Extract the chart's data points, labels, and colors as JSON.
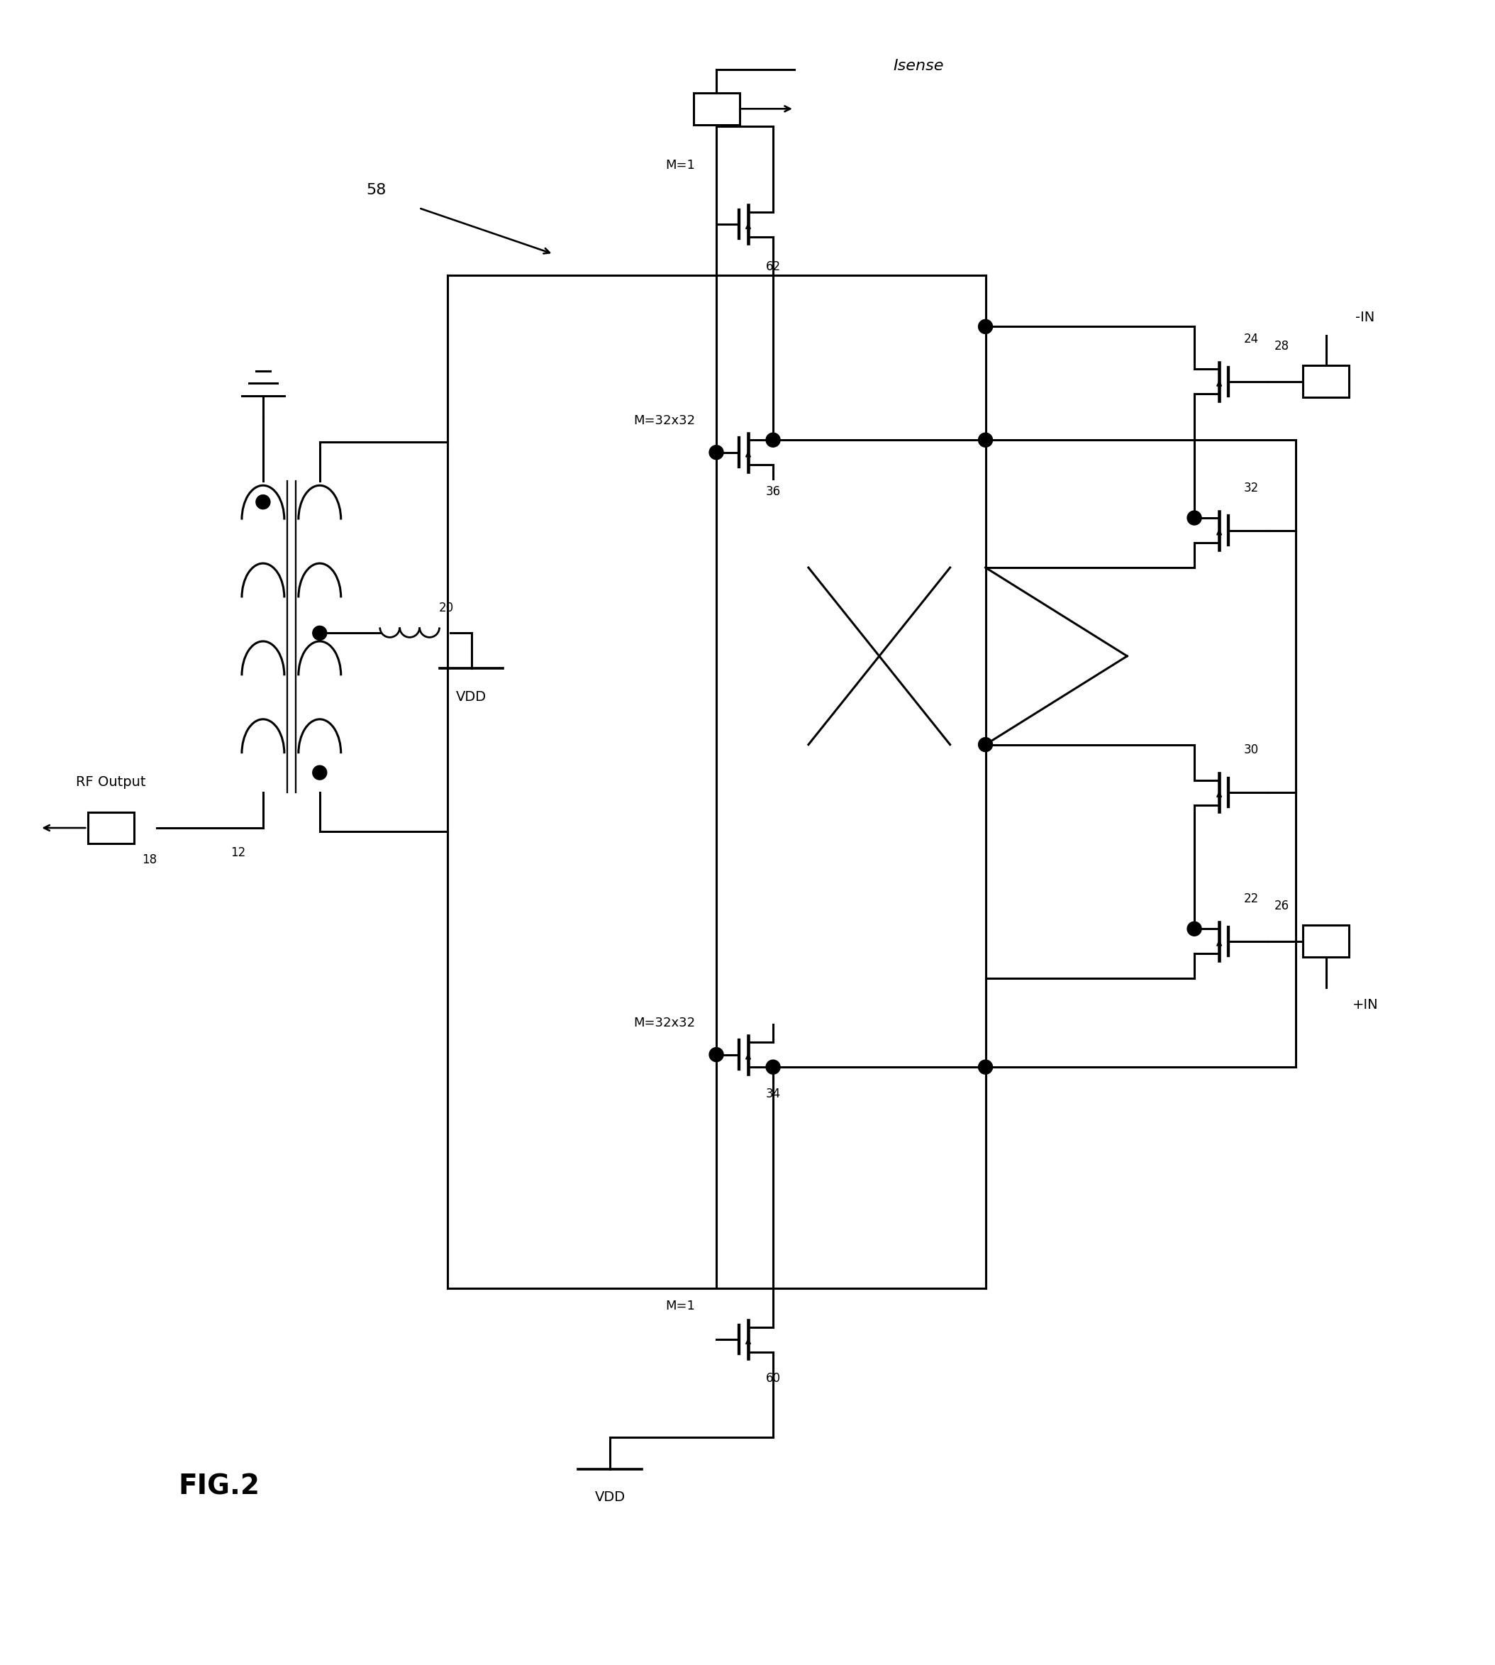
{
  "title": "FIG.2",
  "fig_label": "58",
  "background": "#ffffff",
  "lc": "#000000",
  "lw": 2.2,
  "labels": {
    "rf_output": "RF Output",
    "isense": "Isense",
    "vdd_top": "VDD",
    "vdd_bot": "VDD",
    "minus_in": "-IN",
    "plus_in": "+IN",
    "m1_top": "M=1",
    "m1_bot": "M=1",
    "m32_top": "M=32x32",
    "m32_bot": "M=32x32",
    "n18": "18",
    "n12": "12",
    "n20": "20",
    "n22": "22",
    "n24": "24",
    "n26": "26",
    "n28": "28",
    "n30": "30",
    "n32": "32",
    "n34": "34",
    "n36": "36",
    "n60": "60",
    "n62": "62"
  }
}
